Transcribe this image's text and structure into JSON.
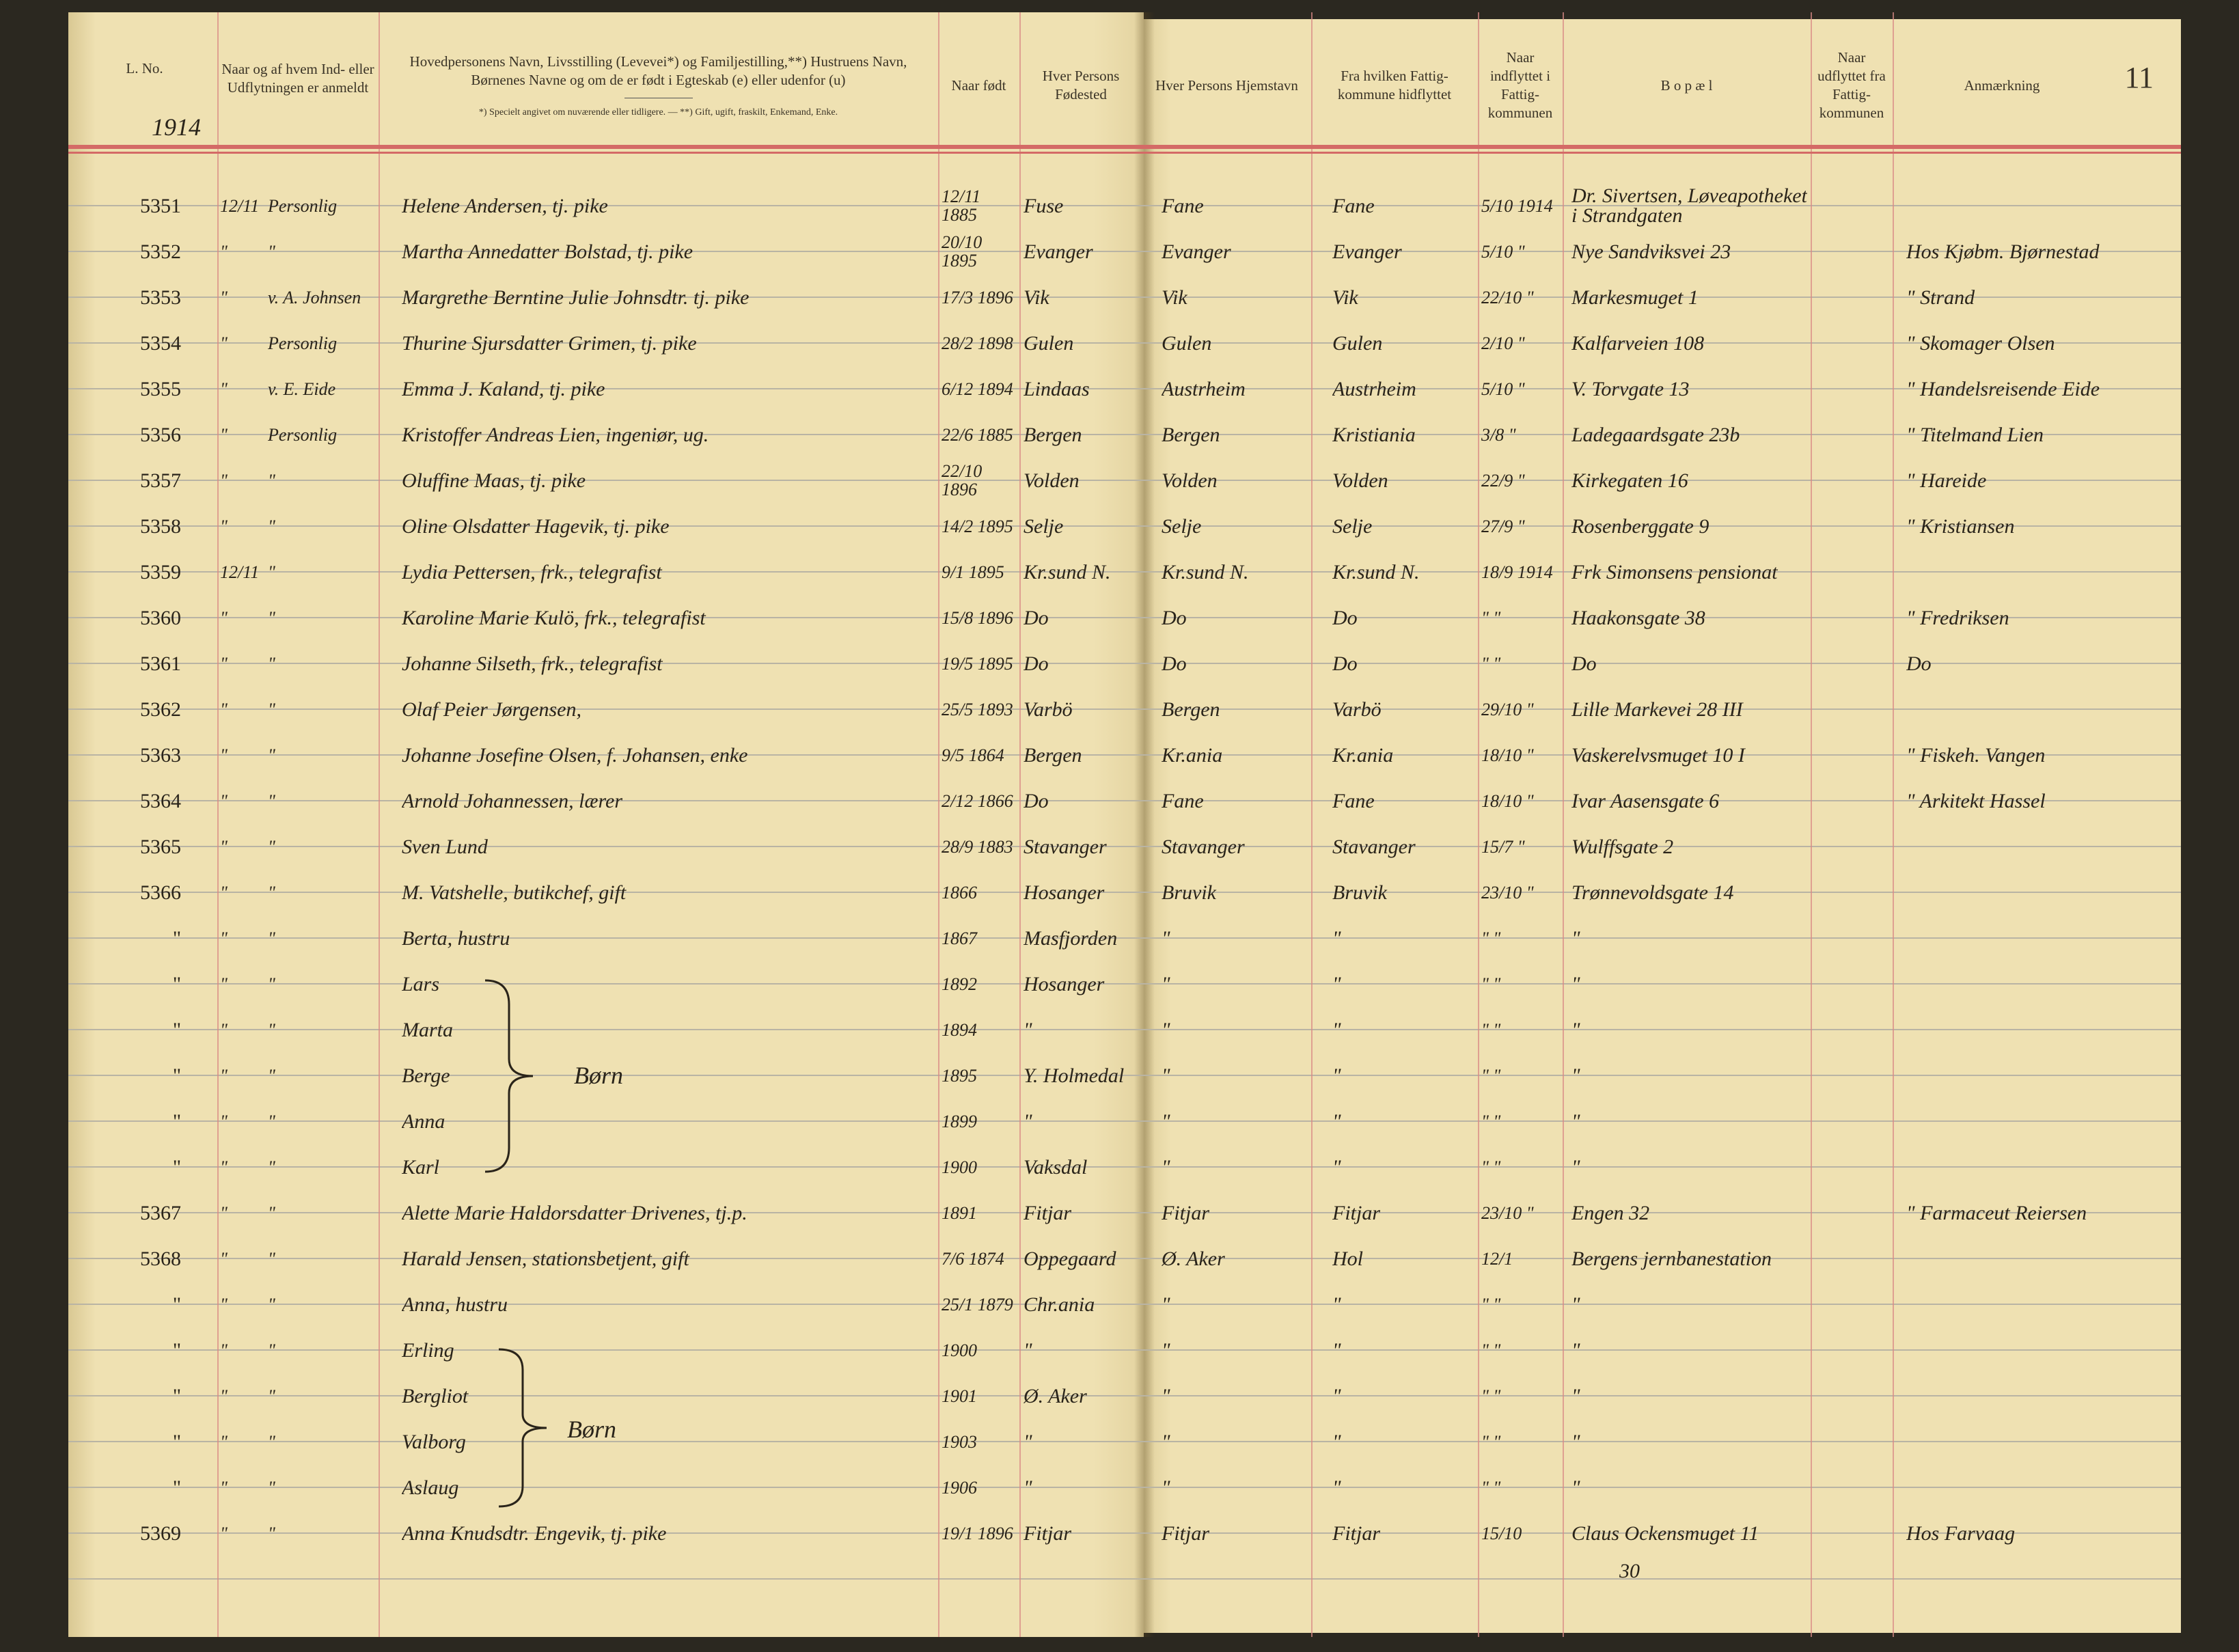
{
  "page_number": "11",
  "year": "1914",
  "headers": {
    "l_no": "L. No.",
    "reported": "Naar og af hvem Ind- eller Udflytningen er anmeldt",
    "name": "Hovedpersonens Navn, Livsstilling (Levevei*) og Familjestilling,**) Hustruens Navn, Børnenes Navne og om de er født i Egteskab (e) eller udenfor (u)",
    "name_note": "*) Specielt angivet om nuværende eller tidligere. — **) Gift, ugift, fraskilt, Enkemand, Enke.",
    "born": "Naar født",
    "birthplace": "Hver Persons Fødested",
    "home": "Hver Persons Hjemstavn",
    "from": "Fra hvilken Fattig-kommune hidflyttet",
    "moved_in": "Naar indflyttet i Fattig-kommunen",
    "address": "B o p æ l",
    "moved_out": "Naar udflyttet fra Fattig-kommunen",
    "remarks": "Anmærkning"
  },
  "children_label": "Børn",
  "rows": [
    {
      "no": "5351",
      "date": "12/11",
      "by": "Personlig",
      "name": "Helene Andersen, tj. pike",
      "born": "12/11 1885",
      "bplace": "Fuse",
      "home": "Fane",
      "from": "Fane",
      "in": "5/10 1914",
      "addr": "Dr. Sivertsen, Løveapotheket i Strandgaten",
      "out": "",
      "rem": ""
    },
    {
      "no": "5352",
      "date": "\"",
      "by": "\"",
      "name": "Martha Annedatter Bolstad, tj. pike",
      "born": "20/10 1895",
      "bplace": "Evanger",
      "home": "Evanger",
      "from": "Evanger",
      "in": "5/10 \"",
      "addr": "Nye Sandviksvei 23",
      "out": "",
      "rem": "Hos Kjøbm. Bjørnestad"
    },
    {
      "no": "5353",
      "date": "\"",
      "by": "v. A. Johnsen",
      "name": "Margrethe Berntine Julie Johnsdtr. tj. pike",
      "born": "17/3 1896",
      "bplace": "Vik",
      "home": "Vik",
      "from": "Vik",
      "in": "22/10 \"",
      "addr": "Markesmuget 1",
      "out": "",
      "rem": "\" Strand"
    },
    {
      "no": "5354",
      "date": "\"",
      "by": "Personlig",
      "name": "Thurine Sjursdatter Grimen, tj. pike",
      "born": "28/2 1898",
      "bplace": "Gulen",
      "home": "Gulen",
      "from": "Gulen",
      "in": "2/10 \"",
      "addr": "Kalfarveien 108",
      "out": "",
      "rem": "\" Skomager Olsen"
    },
    {
      "no": "5355",
      "date": "\"",
      "by": "v. E. Eide",
      "name": "Emma J. Kaland, tj. pike",
      "born": "6/12 1894",
      "bplace": "Lindaas",
      "home": "Austrheim",
      "from": "Austrheim",
      "in": "5/10 \"",
      "addr": "V. Torvgate 13",
      "out": "",
      "rem": "\" Handelsreisende Eide"
    },
    {
      "no": "5356",
      "date": "\"",
      "by": "Personlig",
      "name": "Kristoffer Andreas Lien, ingeniør, ug.",
      "born": "22/6 1885",
      "bplace": "Bergen",
      "home": "Bergen",
      "from": "Kristiania",
      "in": "3/8 \"",
      "addr": "Ladegaardsgate 23b",
      "out": "",
      "rem": "\" Titelmand Lien"
    },
    {
      "no": "5357",
      "date": "\"",
      "by": "\"",
      "name": "Oluffine Maas, tj. pike",
      "born": "22/10 1896",
      "bplace": "Volden",
      "home": "Volden",
      "from": "Volden",
      "in": "22/9 \"",
      "addr": "Kirkegaten 16",
      "out": "",
      "rem": "\" Hareide"
    },
    {
      "no": "5358",
      "date": "\"",
      "by": "\"",
      "name": "Oline Olsdatter Hagevik, tj. pike",
      "born": "14/2 1895",
      "bplace": "Selje",
      "home": "Selje",
      "from": "Selje",
      "in": "27/9 \"",
      "addr": "Rosenberggate 9",
      "out": "",
      "rem": "\" Kristiansen"
    },
    {
      "no": "5359",
      "date": "12/11",
      "by": "\"",
      "name": "Lydia Pettersen, frk., telegrafist",
      "born": "9/1 1895",
      "bplace": "Kr.sund N.",
      "home": "Kr.sund N.",
      "from": "Kr.sund N.",
      "in": "18/9 1914",
      "addr": "Frk Simonsens pensionat",
      "out": "",
      "rem": ""
    },
    {
      "no": "5360",
      "date": "\"",
      "by": "\"",
      "name": "Karoline Marie Kulö, frk., telegrafist",
      "born": "15/8 1896",
      "bplace": "Do",
      "home": "Do",
      "from": "Do",
      "in": "\" \"",
      "addr": "Haakonsgate 38",
      "out": "",
      "rem": "\" Fredriksen"
    },
    {
      "no": "5361",
      "date": "\"",
      "by": "\"",
      "name": "Johanne Silseth, frk., telegrafist",
      "born": "19/5 1895",
      "bplace": "Do",
      "home": "Do",
      "from": "Do",
      "in": "\" \"",
      "addr": "Do",
      "out": "",
      "rem": "Do"
    },
    {
      "no": "5362",
      "date": "\"",
      "by": "\"",
      "name": "Olaf Peier Jørgensen,",
      "born": "25/5 1893",
      "bplace": "Varbö",
      "home": "Bergen",
      "from": "Varbö",
      "in": "29/10 \"",
      "addr": "Lille Markevei 28 III",
      "out": "",
      "rem": ""
    },
    {
      "no": "5363",
      "date": "\"",
      "by": "\"",
      "name": "Johanne Josefine Olsen, f. Johansen, enke",
      "born": "9/5 1864",
      "bplace": "Bergen",
      "home": "Kr.ania",
      "from": "Kr.ania",
      "in": "18/10 \"",
      "addr": "Vaskerelvsmuget 10 I",
      "out": "",
      "rem": "\" Fiskeh. Vangen"
    },
    {
      "no": "5364",
      "date": "\"",
      "by": "\"",
      "name": "Arnold Johannessen, lærer",
      "born": "2/12 1866",
      "bplace": "Do",
      "home": "Fane",
      "from": "Fane",
      "in": "18/10 \"",
      "addr": "Ivar Aasensgate 6",
      "out": "",
      "rem": "\" Arkitekt Hassel"
    },
    {
      "no": "5365",
      "date": "\"",
      "by": "\"",
      "name": "Sven Lund",
      "born": "28/9 1883",
      "bplace": "Stavanger",
      "home": "Stavanger",
      "from": "Stavanger",
      "in": "15/7 \"",
      "addr": "Wulffsgate 2",
      "out": "",
      "rem": ""
    },
    {
      "no": "5366",
      "date": "\"",
      "by": "\"",
      "name": "M. Vatshelle, butikchef, gift",
      "born": "1866",
      "bplace": "Hosanger",
      "home": "Bruvik",
      "from": "Bruvik",
      "in": "23/10 \"",
      "addr": "Trønnevoldsgate 14",
      "out": "",
      "rem": ""
    },
    {
      "no": "\"",
      "date": "\"",
      "by": "\"",
      "name": "Berta, hustru",
      "born": "1867",
      "bplace": "Masfjorden",
      "home": "\"",
      "from": "\"",
      "in": "\" \"",
      "addr": "\"",
      "out": "",
      "rem": ""
    },
    {
      "no": "\"",
      "date": "\"",
      "by": "\"",
      "name": "Lars",
      "born": "1892",
      "bplace": "Hosanger",
      "home": "\"",
      "from": "\"",
      "in": "\" \"",
      "addr": "\"",
      "out": "",
      "rem": ""
    },
    {
      "no": "\"",
      "date": "\"",
      "by": "\"",
      "name": "Marta",
      "born": "1894",
      "bplace": "\"",
      "home": "\"",
      "from": "\"",
      "in": "\" \"",
      "addr": "\"",
      "out": "",
      "rem": ""
    },
    {
      "no": "\"",
      "date": "\"",
      "by": "\"",
      "name": "Berge",
      "born": "1895",
      "bplace": "Y. Holmedal",
      "home": "\"",
      "from": "\"",
      "in": "\" \"",
      "addr": "\"",
      "out": "",
      "rem": ""
    },
    {
      "no": "\"",
      "date": "\"",
      "by": "\"",
      "name": "Anna",
      "born": "1899",
      "bplace": "\"",
      "home": "\"",
      "from": "\"",
      "in": "\" \"",
      "addr": "\"",
      "out": "",
      "rem": ""
    },
    {
      "no": "\"",
      "date": "\"",
      "by": "\"",
      "name": "Karl",
      "born": "1900",
      "bplace": "Vaksdal",
      "home": "\"",
      "from": "\"",
      "in": "\" \"",
      "addr": "\"",
      "out": "",
      "rem": ""
    },
    {
      "no": "5367",
      "date": "\"",
      "by": "\"",
      "name": "Alette Marie Haldorsdatter Drivenes, tj.p.",
      "born": "1891",
      "bplace": "Fitjar",
      "home": "Fitjar",
      "from": "Fitjar",
      "in": "23/10 \"",
      "addr": "Engen 32",
      "out": "",
      "rem": "\" Farmaceut Reiersen"
    },
    {
      "no": "5368",
      "date": "\"",
      "by": "\"",
      "name": "Harald Jensen, stationsbetjent, gift",
      "born": "7/6 1874",
      "bplace": "Oppegaard",
      "home": "Ø. Aker",
      "from": "Hol",
      "in": "12/1",
      "addr": "Bergens jernbanestation",
      "out": "",
      "rem": ""
    },
    {
      "no": "\"",
      "date": "\"",
      "by": "\"",
      "name": "Anna, hustru",
      "born": "25/1 1879",
      "bplace": "Chr.ania",
      "home": "\"",
      "from": "\"",
      "in": "\" \"",
      "addr": "\"",
      "out": "",
      "rem": ""
    },
    {
      "no": "\"",
      "date": "\"",
      "by": "\"",
      "name": "Erling",
      "born": "1900",
      "bplace": "\"",
      "home": "\"",
      "from": "\"",
      "in": "\" \"",
      "addr": "\"",
      "out": "",
      "rem": ""
    },
    {
      "no": "\"",
      "date": "\"",
      "by": "\"",
      "name": "Bergliot",
      "born": "1901",
      "bplace": "Ø. Aker",
      "home": "\"",
      "from": "\"",
      "in": "\" \"",
      "addr": "\"",
      "out": "",
      "rem": ""
    },
    {
      "no": "\"",
      "date": "\"",
      "by": "\"",
      "name": "Valborg",
      "born": "1903",
      "bplace": "\"",
      "home": "\"",
      "from": "\"",
      "in": "\" \"",
      "addr": "\"",
      "out": "",
      "rem": ""
    },
    {
      "no": "\"",
      "date": "\"",
      "by": "\"",
      "name": "Aslaug",
      "born": "1906",
      "bplace": "\"",
      "home": "\"",
      "from": "\"",
      "in": "\" \"",
      "addr": "\"",
      "out": "",
      "rem": ""
    },
    {
      "no": "5369",
      "date": "\"",
      "by": "\"",
      "name": "Anna Knudsdtr. Engevik, tj. pike",
      "born": "19/1 1896",
      "bplace": "Fitjar",
      "home": "Fitjar",
      "from": "Fitjar",
      "in": "15/10",
      "addr": "Claus Ockensmuget 11",
      "out": "",
      "rem": "Hos Farvaag"
    }
  ],
  "addr_note_last": "30"
}
